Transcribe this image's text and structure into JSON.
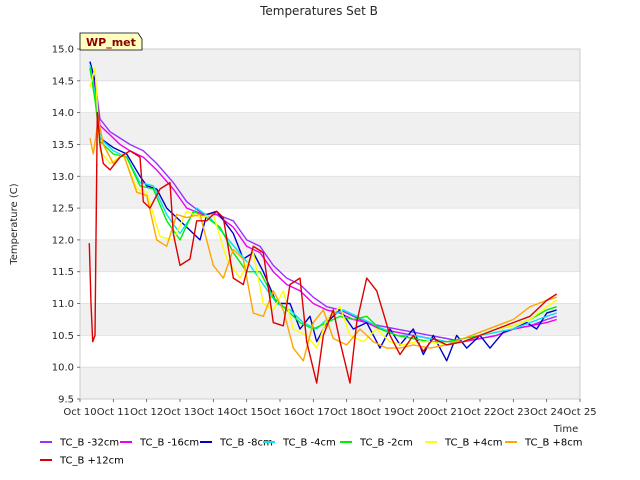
{
  "chart_data": {
    "type": "line",
    "title": "Temperatures Set B",
    "xlabel": "Time",
    "ylabel": "Temperature (C)",
    "xlim": [
      0,
      16
    ],
    "ylim": [
      9.5,
      15.0
    ],
    "x_ticks": [
      {
        "v": 0,
        "label": "Oct 10"
      },
      {
        "v": 1,
        "label": "Oct 11"
      },
      {
        "v": 2,
        "label": "Oct 12"
      },
      {
        "v": 3,
        "label": "Oct 13"
      },
      {
        "v": 4,
        "label": "Oct 14"
      },
      {
        "v": 5,
        "label": "Oct 15"
      },
      {
        "v": 6,
        "label": "Oct 16"
      },
      {
        "v": 7,
        "label": "Oct 17"
      },
      {
        "v": 8,
        "label": "Oct 18"
      },
      {
        "v": 9,
        "label": "Oct 19"
      },
      {
        "v": 10,
        "label": "Oct 20"
      },
      {
        "v": 11,
        "label": "Oct 21"
      },
      {
        "v": 12,
        "label": "Oct 22"
      },
      {
        "v": 13,
        "label": "Oct 23"
      },
      {
        "v": 14,
        "label": "Oct 24"
      },
      {
        "v": 15,
        "label": "Oct 25"
      }
    ],
    "y_ticks": [
      {
        "v": 9.5,
        "label": "9.5"
      },
      {
        "v": 10.0,
        "label": "10.0"
      },
      {
        "v": 10.5,
        "label": "10.5"
      },
      {
        "v": 11.0,
        "label": "11.0"
      },
      {
        "v": 11.5,
        "label": "11.5"
      },
      {
        "v": 12.0,
        "label": "12.0"
      },
      {
        "v": 12.5,
        "label": "12.5"
      },
      {
        "v": 13.0,
        "label": "13.0"
      },
      {
        "v": 13.5,
        "label": "13.5"
      },
      {
        "v": 14.0,
        "label": "14.0"
      },
      {
        "v": 14.5,
        "label": "14.5"
      },
      {
        "v": 15.0,
        "label": "15.0"
      }
    ],
    "grid": true,
    "badge": "WP_met",
    "legend_placement": "bottom",
    "series": [
      {
        "name": "TC_B -32cm",
        "color": "#9b30ff",
        "x": [
          0.3,
          0.45,
          0.6,
          0.9,
          1.2,
          1.5,
          1.9,
          2.3,
          2.8,
          3.2,
          3.7,
          4.1,
          4.6,
          5.0,
          5.4,
          5.8,
          6.2,
          6.6,
          7.0,
          7.4,
          7.8,
          8.2,
          8.6,
          9.0,
          9.5,
          10.0,
          10.5,
          11.0,
          11.5,
          12.0,
          12.5,
          13.0,
          13.5,
          14.0,
          14.3
        ],
        "y": [
          14.8,
          14.5,
          13.9,
          13.7,
          13.6,
          13.5,
          13.4,
          13.2,
          12.9,
          12.6,
          12.4,
          12.4,
          12.3,
          12.0,
          11.9,
          11.6,
          11.4,
          11.3,
          11.1,
          10.95,
          10.9,
          10.8,
          10.7,
          10.65,
          10.6,
          10.55,
          10.5,
          10.45,
          10.4,
          10.45,
          10.5,
          10.6,
          10.65,
          10.75,
          10.8
        ]
      },
      {
        "name": "TC_B -16cm",
        "color": "#ee00ee",
        "x": [
          0.3,
          0.45,
          0.6,
          0.9,
          1.2,
          1.5,
          1.9,
          2.3,
          2.8,
          3.2,
          3.7,
          4.1,
          4.6,
          5.0,
          5.4,
          5.8,
          6.2,
          6.6,
          7.0,
          7.4,
          7.8,
          8.2,
          8.6,
          9.0,
          9.5,
          10.0,
          10.5,
          11.0,
          11.5,
          12.0,
          12.5,
          13.0,
          13.5,
          14.0,
          14.3
        ],
        "y": [
          14.7,
          14.4,
          13.8,
          13.65,
          13.5,
          13.4,
          13.3,
          13.1,
          12.8,
          12.5,
          12.4,
          12.4,
          12.2,
          11.9,
          11.8,
          11.5,
          11.3,
          11.2,
          11.0,
          10.9,
          10.85,
          10.75,
          10.7,
          10.6,
          10.55,
          10.5,
          10.45,
          10.4,
          10.4,
          10.45,
          10.5,
          10.6,
          10.65,
          10.7,
          10.75
        ]
      },
      {
        "name": "TC_B -8cm",
        "color": "#0000cc",
        "x": [
          0.3,
          0.45,
          0.6,
          1.0,
          1.4,
          1.8,
          2.0,
          2.3,
          2.6,
          3.0,
          3.6,
          3.8,
          4.1,
          4.6,
          4.9,
          5.2,
          5.5,
          5.9,
          6.3,
          6.6,
          6.9,
          7.1,
          7.4,
          7.8,
          8.2,
          8.6,
          9.0,
          9.3,
          9.6,
          10.0,
          10.3,
          10.6,
          11.0,
          11.3,
          11.6,
          12.0,
          12.3,
          12.7,
          13.0,
          13.4,
          13.7,
          14.0,
          14.3
        ],
        "y": [
          14.8,
          14.5,
          13.6,
          13.45,
          13.35,
          13.0,
          12.85,
          12.8,
          12.5,
          12.3,
          12.0,
          12.4,
          12.45,
          12.1,
          11.7,
          11.8,
          11.5,
          11.0,
          11.0,
          10.6,
          10.8,
          10.4,
          10.7,
          10.9,
          10.6,
          10.7,
          10.3,
          10.6,
          10.35,
          10.6,
          10.2,
          10.5,
          10.1,
          10.5,
          10.3,
          10.5,
          10.3,
          10.55,
          10.6,
          10.7,
          10.6,
          10.85,
          10.9
        ]
      },
      {
        "name": "TC_B -4cm",
        "color": "#00e5ee",
        "x": [
          0.3,
          0.45,
          0.6,
          1.0,
          1.4,
          1.8,
          2.2,
          2.6,
          3.0,
          3.5,
          3.9,
          4.3,
          4.7,
          5.1,
          5.5,
          5.9,
          6.3,
          6.7,
          7.1,
          7.5,
          7.9,
          8.3,
          8.7,
          9.1,
          9.5,
          10.0,
          10.5,
          11.0,
          11.5,
          12.0,
          12.5,
          13.0,
          13.5,
          14.0,
          14.3
        ],
        "y": [
          14.75,
          14.3,
          13.6,
          13.4,
          13.3,
          12.9,
          12.85,
          12.4,
          12.1,
          12.5,
          12.35,
          12.1,
          11.85,
          11.6,
          11.3,
          11.0,
          10.9,
          10.7,
          10.6,
          10.8,
          10.9,
          10.8,
          10.7,
          10.6,
          10.5,
          10.5,
          10.45,
          10.4,
          10.4,
          10.5,
          10.55,
          10.6,
          10.7,
          10.8,
          10.85
        ]
      },
      {
        "name": "TC_B -2cm",
        "color": "#00ee00",
        "x": [
          0.3,
          0.45,
          0.6,
          1.0,
          1.4,
          1.8,
          2.2,
          2.6,
          3.0,
          3.4,
          3.8,
          4.2,
          4.6,
          5.0,
          5.4,
          5.8,
          6.2,
          6.6,
          7.0,
          7.4,
          7.8,
          8.2,
          8.6,
          9.0,
          9.5,
          10.0,
          10.5,
          11.0,
          11.5,
          12.0,
          12.5,
          13.0,
          13.5,
          14.0,
          14.3
        ],
        "y": [
          14.7,
          14.2,
          13.55,
          13.35,
          13.3,
          12.85,
          12.8,
          12.3,
          12.0,
          12.45,
          12.35,
          12.2,
          11.8,
          11.5,
          11.5,
          11.1,
          10.9,
          10.7,
          10.6,
          10.7,
          10.8,
          10.75,
          10.8,
          10.6,
          10.5,
          10.45,
          10.4,
          10.4,
          10.45,
          10.5,
          10.6,
          10.65,
          10.75,
          10.9,
          10.95
        ]
      },
      {
        "name": "TC_B +4cm",
        "color": "#ffff00",
        "x": [
          0.3,
          0.45,
          0.6,
          0.9,
          1.3,
          1.7,
          2.0,
          2.4,
          2.8,
          3.2,
          3.6,
          4.0,
          4.4,
          4.8,
          5.2,
          5.5,
          5.8,
          6.1,
          6.4,
          6.8,
          7.1,
          7.4,
          7.8,
          8.1,
          8.5,
          8.9,
          9.3,
          9.7,
          10.1,
          10.5,
          11.0,
          11.5,
          12.0,
          12.5,
          13.0,
          13.5,
          14.0,
          14.3
        ],
        "y": [
          14.4,
          14.7,
          13.4,
          13.2,
          13.35,
          12.8,
          12.75,
          12.05,
          12.0,
          12.45,
          12.35,
          12.4,
          11.7,
          11.4,
          11.8,
          11.0,
          10.9,
          11.2,
          10.6,
          10.5,
          10.3,
          10.75,
          10.95,
          10.5,
          10.4,
          10.6,
          10.4,
          10.35,
          10.4,
          10.4,
          10.35,
          10.4,
          10.5,
          10.6,
          10.65,
          10.75,
          10.95,
          11.05
        ]
      },
      {
        "name": "TC_B +8cm",
        "color": "#ffa500",
        "x": [
          0.3,
          0.4,
          0.55,
          0.7,
          1.0,
          1.3,
          1.7,
          2.0,
          2.3,
          2.6,
          2.9,
          3.2,
          3.6,
          4.0,
          4.3,
          4.6,
          4.9,
          5.2,
          5.5,
          5.8,
          6.1,
          6.4,
          6.7,
          7.0,
          7.3,
          7.6,
          8.0,
          8.4,
          8.8,
          9.2,
          9.6,
          10.0,
          10.5,
          11.0,
          11.5,
          12.0,
          12.5,
          13.0,
          13.5,
          14.0,
          14.3
        ],
        "y": [
          13.6,
          13.35,
          13.9,
          13.5,
          13.2,
          13.35,
          12.75,
          12.7,
          12.0,
          11.9,
          12.4,
          12.35,
          12.4,
          11.6,
          11.4,
          11.85,
          11.7,
          10.85,
          10.8,
          11.2,
          10.9,
          10.3,
          10.1,
          10.7,
          10.9,
          10.45,
          10.35,
          10.6,
          10.4,
          10.3,
          10.3,
          10.35,
          10.3,
          10.35,
          10.45,
          10.55,
          10.65,
          10.75,
          10.95,
          11.05,
          11.1
        ]
      },
      {
        "name": "TC_B +12cm",
        "color": "#dd0000",
        "x": [
          0.28,
          0.33,
          0.38,
          0.45,
          0.52,
          0.6,
          0.7,
          0.9,
          1.2,
          1.5,
          1.8,
          1.9,
          2.1,
          2.4,
          2.7,
          2.8,
          3.0,
          3.3,
          3.5,
          3.8,
          4.1,
          4.3,
          4.6,
          4.9,
          5.2,
          5.5,
          5.8,
          6.1,
          6.3,
          6.6,
          6.8,
          7.1,
          7.3,
          7.6,
          7.8,
          8.1,
          8.3,
          8.6,
          8.9,
          9.3,
          9.6,
          10.0,
          10.3,
          10.6,
          11.0,
          11.5,
          12.0,
          12.5,
          13.0,
          13.5,
          14.0,
          14.3
        ],
        "y": [
          11.95,
          11.0,
          10.4,
          10.5,
          14.0,
          13.5,
          13.2,
          13.1,
          13.3,
          13.4,
          13.3,
          12.6,
          12.5,
          12.8,
          12.9,
          12.1,
          11.6,
          11.7,
          12.3,
          12.3,
          12.45,
          12.35,
          11.4,
          11.3,
          11.9,
          11.8,
          10.7,
          10.65,
          11.3,
          11.4,
          10.4,
          9.75,
          10.5,
          10.9,
          10.4,
          9.75,
          10.7,
          11.4,
          11.2,
          10.5,
          10.2,
          10.5,
          10.25,
          10.45,
          10.35,
          10.4,
          10.5,
          10.6,
          10.7,
          10.8,
          11.05,
          11.15
        ]
      }
    ]
  }
}
